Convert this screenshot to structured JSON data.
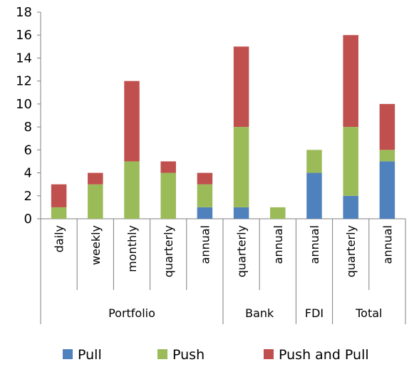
{
  "chart_data": {
    "type": "bar",
    "stacked": true,
    "groups": [
      {
        "label": "Portfolio",
        "categories": [
          "daily",
          "weekly",
          "monthly",
          "quarterly",
          "annual"
        ]
      },
      {
        "label": "Bank",
        "categories": [
          "quarterly",
          "annual"
        ]
      },
      {
        "label": "FDI",
        "categories": [
          "annual"
        ]
      },
      {
        "label": "Total",
        "categories": [
          "quarterly",
          "annual"
        ]
      }
    ],
    "categories": [
      "daily",
      "weekly",
      "monthly",
      "quarterly",
      "annual",
      "quarterly",
      "annual",
      "annual",
      "quarterly",
      "annual"
    ],
    "series": [
      {
        "name": "Pull",
        "color": "#4f81bd",
        "values": [
          0,
          0,
          0,
          0,
          1,
          1,
          0,
          4,
          2,
          5
        ]
      },
      {
        "name": "Push",
        "color": "#9bbb59",
        "values": [
          1,
          3,
          5,
          4,
          2,
          7,
          1,
          2,
          6,
          1
        ]
      },
      {
        "name": "Push and Pull",
        "color": "#c0504d",
        "values": [
          2,
          1,
          7,
          1,
          1,
          7,
          0,
          0,
          8,
          4
        ]
      }
    ],
    "yticks": [
      0,
      2,
      4,
      6,
      8,
      10,
      12,
      14,
      16,
      18
    ],
    "ylim": [
      0,
      18
    ],
    "grid": false,
    "legend_position": "bottom"
  }
}
